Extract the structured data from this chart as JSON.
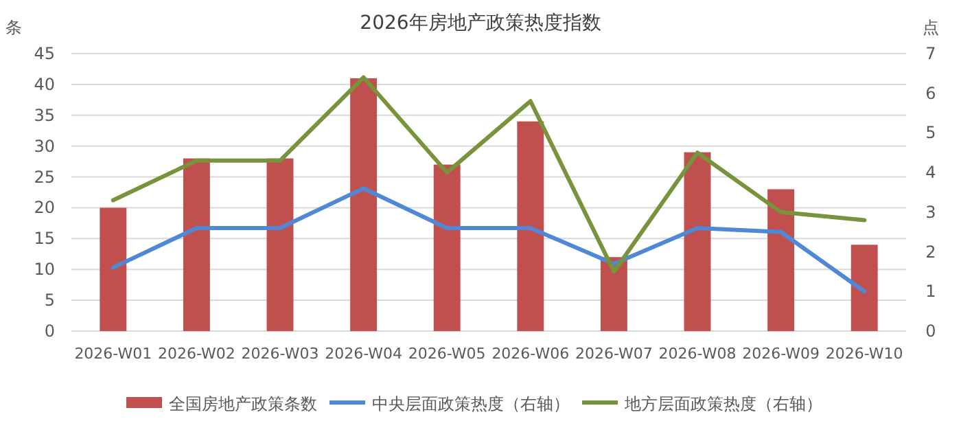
{
  "chart_data": {
    "type": "bar",
    "title": "2026年房地产政策热度指数",
    "ylabel": "条",
    "y2label": "点",
    "categories": [
      "2026-W01",
      "2026-W02",
      "2026-W03",
      "2026-W04",
      "2026-W05",
      "2026-W06",
      "2026-W07",
      "2026-W08",
      "2026-W09",
      "2026-W10"
    ],
    "series": [
      {
        "name": "全国房地产政策条数",
        "color": "#c0504d",
        "values": [
          20,
          28,
          28,
          41,
          27,
          34,
          12,
          29,
          23,
          14
        ]
      },
      {
        "name": "中央层面政策热度（右轴）",
        "type": "line",
        "axis": "y2",
        "color": "#4f89d6",
        "values": [
          1.6,
          2.6,
          2.6,
          3.6,
          2.6,
          2.6,
          1.7,
          2.6,
          2.5,
          1.0
        ]
      },
      {
        "name": "地方层面政策热度（右轴）",
        "type": "line",
        "axis": "y2",
        "color": "#77933c",
        "values": [
          3.3,
          4.3,
          4.3,
          6.4,
          4.0,
          5.8,
          1.5,
          4.5,
          3.0,
          2.8
        ]
      }
    ],
    "ylim": [
      0,
      45
    ],
    "yticks": [
      0,
      5,
      10,
      15,
      20,
      25,
      30,
      35,
      40,
      45
    ],
    "y2lim": [
      0,
      7
    ],
    "y2ticks": [
      0,
      1,
      2,
      3,
      4,
      5,
      6,
      7
    ],
    "grid": "y",
    "legend": "bottom",
    "marker": "none",
    "line_style": "solid"
  }
}
